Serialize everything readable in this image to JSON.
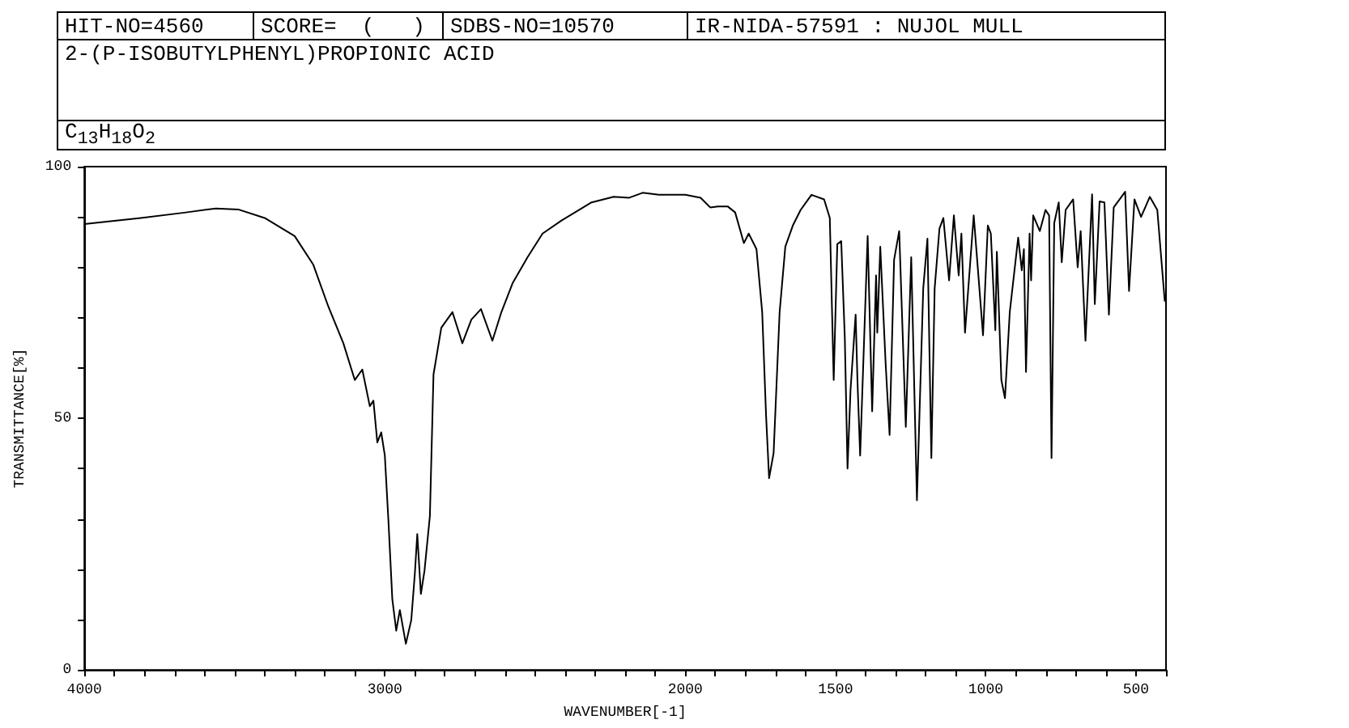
{
  "chart_data": {
    "type": "line",
    "title": "2-(P-ISOBUTYLPHENYL)PROPIONIC ACID",
    "annotations": [
      "HIT-NO=4560",
      "SCORE=  (   )",
      "SDBS-NO=10570",
      "IR-NIDA-57591 : NUJOL MULL",
      "C$_{13}$H$_{18}$O$_{2}$"
    ],
    "xlabel": "WAVENUMBER[-1]",
    "ylabel": "TRANSMITTANCE[%]",
    "xlim": [
      4000,
      400
    ],
    "ylim": [
      0,
      100
    ],
    "xticks": [
      4000,
      {
        "value": 3900,
        "label": null
      },
      {
        "value": 3800,
        "label": null
      },
      {
        "value": 3700,
        "label": null
      },
      {
        "value": 3600,
        "label": null
      },
      {
        "value": 3500,
        "label": null
      },
      {
        "value": 3400,
        "label": null
      },
      {
        "value": 3300,
        "label": null
      },
      {
        "value": 3200,
        "label": null
      },
      {
        "value": 3100,
        "label": null
      },
      3000,
      {
        "value": 2900,
        "label": null
      },
      {
        "value": 2800,
        "label": null
      },
      {
        "value": 2700,
        "label": null
      },
      {
        "value": 2600,
        "label": null
      },
      {
        "value": 2500,
        "label": null
      },
      {
        "value": 2400,
        "label": null
      },
      {
        "value": 2300,
        "label": null
      },
      {
        "value": 2200,
        "label": null
      },
      {
        "value": 2100,
        "label": null
      },
      2000,
      {
        "value": 1900,
        "label": null
      },
      {
        "value": 1800,
        "label": null
      },
      {
        "value": 1700,
        "label": null
      },
      {
        "value": 1600,
        "label": null
      },
      1500,
      {
        "value": 1400,
        "label": null
      },
      {
        "value": 1300,
        "label": null
      },
      {
        "value": 1200,
        "label": null
      },
      {
        "value": 1100,
        "label": null
      },
      1000,
      {
        "value": 900,
        "label": null
      },
      {
        "value": 800,
        "label": null
      },
      {
        "value": 700,
        "label": null
      },
      {
        "value": 600,
        "label": null
      },
      500,
      {
        "value": 400,
        "label": null
      }
    ],
    "yticks": [
      0,
      {
        "value": 10,
        "label": null
      },
      {
        "value": 20,
        "label": null
      },
      {
        "value": 30,
        "label": null
      },
      {
        "value": 40,
        "label": null
      },
      50,
      {
        "value": 60,
        "label": null
      },
      {
        "value": 70,
        "label": null
      },
      {
        "value": 80,
        "label": null
      },
      {
        "value": 90,
        "label": null
      },
      100
    ],
    "marker": "none",
    "series": [
      {
        "color": "#000000",
        "x": [
          4000,
          3938,
          3812,
          3662,
          3562,
          3488,
          3400,
          3300,
          3238,
          3188,
          3138,
          3100,
          3075,
          3050,
          3038,
          3025,
          3012,
          3000,
          2988,
          2975,
          2962,
          2950,
          2930,
          2912,
          2900,
          2892,
          2880,
          2868,
          2850,
          2838,
          2812,
          2775,
          2742,
          2712,
          2680,
          2642,
          2612,
          2575,
          2525,
          2475,
          2412,
          2312,
          2238,
          2188,
          2142,
          2088,
          2000,
          1949,
          1917,
          1891,
          1859,
          1834,
          1805,
          1789,
          1763,
          1744,
          1731,
          1721,
          1706,
          1686,
          1667,
          1642,
          1616,
          1580,
          1538,
          1519,
          1506,
          1494,
          1481,
          1469,
          1460,
          1450,
          1433,
          1427,
          1418,
          1393,
          1378,
          1365,
          1361,
          1351,
          1333,
          1320,
          1305,
          1288,
          1266,
          1248,
          1229,
          1208,
          1194,
          1181,
          1170,
          1154,
          1141,
          1122,
          1106,
          1090,
          1081,
          1069,
          1040,
          1009,
          993,
          983,
          968,
          963,
          948,
          936,
          920,
          892,
          880,
          873,
          866,
          854,
          849,
          842,
          820,
          801,
          789,
          781,
          772,
          757,
          747,
          734,
          709,
          694,
          684,
          668,
          646,
          637,
          621,
          605,
          590,
          574,
          536,
          523,
          505,
          483,
          454,
          429,
          404
        ],
        "values": [
          88.6,
          89.0,
          89.8,
          90.9,
          91.7,
          91.5,
          89.8,
          86.2,
          80.5,
          72.2,
          64.9,
          57.6,
          59.7,
          52.4,
          53.5,
          45.2,
          47.2,
          42.6,
          29.6,
          14.0,
          7.8,
          11.9,
          5.2,
          9.9,
          19.2,
          27.0,
          15.1,
          19.7,
          30.6,
          58.7,
          68.0,
          71.1,
          64.9,
          69.6,
          71.7,
          65.4,
          71.1,
          76.8,
          82.0,
          86.7,
          89.3,
          92.9,
          94.0,
          93.8,
          94.8,
          94.4,
          94.4,
          93.8,
          91.9,
          92.1,
          92.1,
          90.9,
          84.8,
          86.7,
          83.6,
          71.1,
          50.4,
          38.1,
          43.1,
          71.1,
          84.1,
          88.3,
          91.4,
          94.4,
          93.5,
          89.8,
          57.6,
          84.6,
          85.2,
          65.9,
          40.0,
          55.6,
          70.6,
          57.6,
          42.6,
          86.2,
          51.4,
          78.4,
          67.0,
          84.1,
          60.7,
          46.7,
          81.5,
          87.2,
          48.3,
          82.0,
          33.7,
          75.8,
          85.7,
          42.1,
          75.8,
          87.7,
          89.8,
          77.4,
          90.3,
          78.4,
          86.7,
          67.0,
          90.3,
          66.5,
          88.3,
          86.7,
          67.5,
          83.1,
          57.6,
          54.0,
          71.1,
          85.9,
          79.4,
          83.6,
          59.2,
          86.7,
          77.4,
          90.3,
          87.2,
          91.4,
          90.3,
          42.1,
          88.8,
          92.9,
          81.0,
          91.4,
          93.5,
          80.0,
          87.2,
          65.4,
          94.5,
          72.7,
          93.1,
          92.9,
          70.6,
          91.9,
          95.0,
          75.3,
          93.5,
          90.0,
          94.0,
          91.4,
          73.2
        ]
      }
    ]
  }
}
